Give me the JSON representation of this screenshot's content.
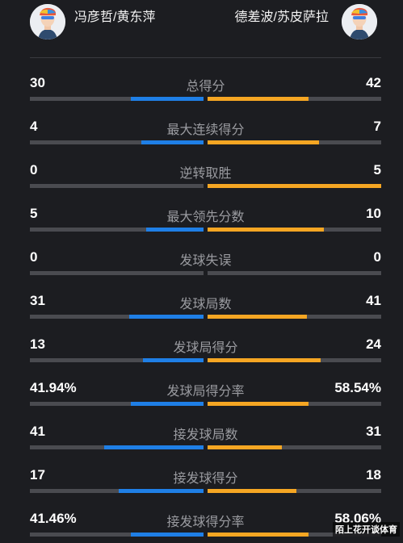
{
  "teams": {
    "left_name": "冯彦哲/黄东萍",
    "right_name": "德差波/苏皮萨拉"
  },
  "colors": {
    "left": "#1f7fe6",
    "right": "#f5a623",
    "track": "#4a4b50"
  },
  "stats": [
    {
      "label": "总得分",
      "left": "30",
      "right": "42",
      "left_share": 0.42,
      "right_share": 0.58
    },
    {
      "label": "最大连续得分",
      "left": "4",
      "right": "7",
      "left_share": 0.36,
      "right_share": 0.64
    },
    {
      "label": "逆转取胜",
      "left": "0",
      "right": "5",
      "left_share": 0.0,
      "right_share": 1.0
    },
    {
      "label": "最大领先分数",
      "left": "5",
      "right": "10",
      "left_share": 0.33,
      "right_share": 0.67
    },
    {
      "label": "发球失误",
      "left": "0",
      "right": "0",
      "left_share": 0.0,
      "right_share": 0.0
    },
    {
      "label": "发球局数",
      "left": "31",
      "right": "41",
      "left_share": 0.43,
      "right_share": 0.57
    },
    {
      "label": "发球局得分",
      "left": "13",
      "right": "24",
      "left_share": 0.35,
      "right_share": 0.65
    },
    {
      "label": "发球局得分率",
      "left": "41.94%",
      "right": "58.54%",
      "left_share": 0.42,
      "right_share": 0.58
    },
    {
      "label": "接发球局数",
      "left": "41",
      "right": "31",
      "left_share": 0.57,
      "right_share": 0.43
    },
    {
      "label": "接发球得分",
      "left": "17",
      "right": "18",
      "left_share": 0.49,
      "right_share": 0.51
    },
    {
      "label": "接发球得分率",
      "left": "41.46%",
      "right": "58.06%",
      "left_share": 0.42,
      "right_share": 0.58
    }
  ],
  "watermark": "陌上花开谈体育"
}
